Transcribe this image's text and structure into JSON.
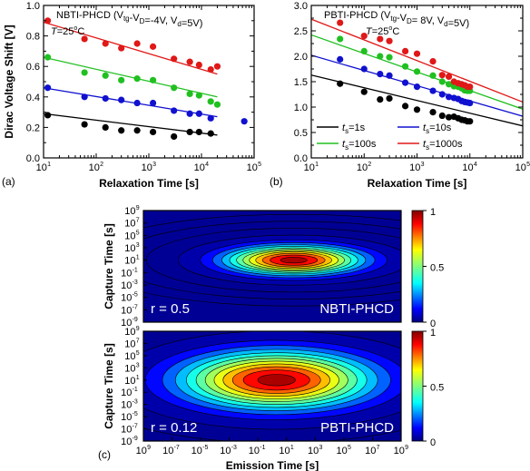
{
  "chart_data": [
    {
      "id": "a",
      "type": "scatter",
      "panel_label": "(a)",
      "title": "NBTI-PHCD",
      "condition": "(V",
      "condition_parts": {
        "vtg": "tg",
        "mid": "-V",
        "vd": "D",
        "eq": "=-4V, V",
        "d": "d",
        "end": "=5V)"
      },
      "temperature_prefix": "T",
      "temperature_value": "=25",
      "temperature_unit": "C",
      "temperature_sup": "o",
      "xlabel": "Relaxation Time [s]",
      "ylabel": "Dirac Voltage Shift [V]",
      "xscale": "log",
      "xlim": [
        10,
        100000
      ],
      "ylim": [
        0.0,
        1.0
      ],
      "xticks": [
        "1",
        "2",
        "3",
        "4",
        "5"
      ],
      "yticks": [
        "0.0",
        "0.2",
        "0.4",
        "0.6",
        "0.8",
        "1.0"
      ],
      "series": [
        {
          "color": "#000000",
          "points": [
            [
              12,
              0.28
            ],
            [
              60,
              0.22
            ],
            [
              150,
              0.2
            ],
            [
              300,
              0.18
            ],
            [
              600,
              0.18
            ],
            [
              1200,
              0.17
            ],
            [
              3000,
              0.14
            ],
            [
              6000,
              0.17
            ],
            [
              9000,
              0.17
            ],
            [
              15000,
              0.16
            ]
          ],
          "fit": [
            [
              10,
              0.29
            ],
            [
              20000,
              0.15
            ]
          ]
        },
        {
          "color": "#1010d0",
          "points": [
            [
              12,
              0.46
            ],
            [
              60,
              0.4
            ],
            [
              150,
              0.39
            ],
            [
              300,
              0.38
            ],
            [
              600,
              0.36
            ],
            [
              1200,
              0.36
            ],
            [
              3000,
              0.31
            ],
            [
              6000,
              0.29
            ],
            [
              9000,
              0.29
            ],
            [
              15000,
              0.26
            ],
            [
              65000,
              0.24
            ]
          ],
          "fit": [
            [
              10,
              0.46
            ],
            [
              20000,
              0.27
            ]
          ]
        },
        {
          "color": "#20c020",
          "points": [
            [
              12,
              0.66
            ],
            [
              60,
              0.56
            ],
            [
              150,
              0.54
            ],
            [
              300,
              0.51
            ],
            [
              600,
              0.52
            ],
            [
              1200,
              0.51
            ],
            [
              3000,
              0.46
            ],
            [
              6000,
              0.42
            ],
            [
              9000,
              0.41
            ],
            [
              15000,
              0.37
            ],
            [
              20000,
              0.35
            ]
          ],
          "fit": [
            [
              10,
              0.66
            ],
            [
              20000,
              0.4
            ]
          ]
        },
        {
          "color": "#e01818",
          "points": [
            [
              12,
              0.9
            ],
            [
              60,
              0.78
            ],
            [
              150,
              0.75
            ],
            [
              300,
              0.72
            ],
            [
              600,
              0.75
            ],
            [
              1200,
              0.73
            ],
            [
              3000,
              0.65
            ],
            [
              6000,
              0.63
            ],
            [
              9000,
              0.61
            ],
            [
              15000,
              0.58
            ],
            [
              20000,
              0.6
            ]
          ],
          "fit": [
            [
              10,
              0.89
            ],
            [
              20000,
              0.55
            ]
          ]
        }
      ]
    },
    {
      "id": "b",
      "type": "scatter",
      "panel_label": "(b)",
      "title": "PBTI-PHCD",
      "condition": "(V",
      "condition_parts": {
        "vtg": "tg",
        "mid": "-V",
        "vd": "D",
        "eq": "= 8V, V",
        "d": "d",
        "end": "=5V)"
      },
      "temperature_prefix": "T",
      "temperature_value": "=25",
      "temperature_unit": "C",
      "temperature_sup": "o",
      "xlabel": "Relaxation Time [s]",
      "ylabel": "",
      "xscale": "log",
      "xlim": [
        10,
        100000
      ],
      "ylim": [
        0.0,
        3.0
      ],
      "xticks": [
        "1",
        "2",
        "3",
        "4",
        "5"
      ],
      "yticks": [
        "0.0",
        "0.5",
        "1.0",
        "1.5",
        "2.0",
        "2.5",
        "3.0"
      ],
      "legend": [
        {
          "prefix": "t",
          "sub": "s",
          "label": "=1s",
          "color": "#000000"
        },
        {
          "prefix": "t",
          "sub": "s",
          "label": "=10s",
          "color": "#1010d0"
        },
        {
          "prefix": "t",
          "sub": "s",
          "label": "=100s",
          "color": "#20c020"
        },
        {
          "prefix": "t",
          "sub": "s",
          "label": "=1000s",
          "color": "#e01818"
        }
      ],
      "series": [
        {
          "color": "#000000",
          "points": [
            [
              35,
              1.46
            ],
            [
              100,
              1.3
            ],
            [
              200,
              1.15
            ],
            [
              300,
              1.17
            ],
            [
              600,
              1.02
            ],
            [
              1000,
              0.95
            ],
            [
              2000,
              0.9
            ],
            [
              3000,
              0.83
            ],
            [
              4000,
              0.8
            ],
            [
              5000,
              0.81
            ],
            [
              6000,
              0.78
            ],
            [
              7000,
              0.75
            ],
            [
              8000,
              0.74
            ],
            [
              9000,
              0.72
            ],
            [
              10000,
              0.72
            ]
          ],
          "fit": [
            [
              10,
              1.63
            ],
            [
              100000,
              0.63
            ]
          ]
        },
        {
          "color": "#1010d0",
          "points": [
            [
              35,
              1.94
            ],
            [
              100,
              1.75
            ],
            [
              200,
              1.65
            ],
            [
              300,
              1.62
            ],
            [
              600,
              1.48
            ],
            [
              1000,
              1.4
            ],
            [
              2000,
              1.32
            ],
            [
              3000,
              1.25
            ],
            [
              4000,
              1.2
            ],
            [
              5000,
              1.18
            ],
            [
              6000,
              1.16
            ],
            [
              7000,
              1.12
            ],
            [
              8000,
              1.1
            ],
            [
              9000,
              1.09
            ],
            [
              10000,
              1.08
            ]
          ],
          "fit": [
            [
              10,
              2.02
            ],
            [
              100000,
              0.82
            ]
          ]
        },
        {
          "color": "#20c020",
          "points": [
            [
              35,
              2.34
            ],
            [
              100,
              2.1
            ],
            [
              200,
              2.0
            ],
            [
              300,
              1.98
            ],
            [
              600,
              1.8
            ],
            [
              1000,
              1.7
            ],
            [
              2000,
              1.62
            ],
            [
              3000,
              1.5
            ],
            [
              4000,
              1.45
            ],
            [
              5000,
              1.41
            ],
            [
              6000,
              1.4
            ],
            [
              7000,
              1.37
            ],
            [
              8000,
              1.33
            ],
            [
              9000,
              1.32
            ],
            [
              10000,
              1.32
            ]
          ],
          "fit": [
            [
              10,
              2.42
            ],
            [
              100000,
              0.96
            ]
          ]
        },
        {
          "color": "#e01818",
          "points": [
            [
              35,
              2.66
            ],
            [
              100,
              2.4
            ],
            [
              200,
              2.34
            ],
            [
              300,
              2.3
            ],
            [
              600,
              2.1
            ],
            [
              1000,
              2.05
            ],
            [
              2000,
              1.9
            ],
            [
              3000,
              1.63
            ],
            [
              4000,
              1.6
            ],
            [
              5000,
              1.5
            ],
            [
              6000,
              1.47
            ],
            [
              7000,
              1.45
            ],
            [
              8000,
              1.43
            ],
            [
              9000,
              1.4
            ],
            [
              10000,
              1.4
            ]
          ],
          "fit": [
            [
              10,
              2.73
            ],
            [
              100000,
              1.1
            ]
          ]
        }
      ]
    },
    {
      "id": "c",
      "type": "heatmap",
      "panel_label": "(c)",
      "xlabel": "Emission Time [s]",
      "ylabel": "Capture Time [s]",
      "xscale": "log",
      "yscale": "log",
      "xticks": [
        "9",
        "-7",
        "-5",
        "-3",
        "-1",
        "1",
        "3",
        "5",
        "7",
        "9"
      ],
      "yticks": [
        "9",
        "7",
        "5",
        "3",
        "1",
        "-1",
        "-3",
        "-5",
        "-7",
        "-9"
      ],
      "colorbar_ticks": [
        "1",
        "0.5",
        "0"
      ],
      "maps": [
        {
          "label": "NBTI-PHCD",
          "r_text": "r = 0.5",
          "center_x_log": 1.5,
          "center_y_log": 1.0,
          "sigma_x": 3.2,
          "sigma_y": 1.6,
          "rho": 0.25
        },
        {
          "label": "PBTI-PHCD",
          "r_text": "r = 0.12",
          "center_x_log": 0.3,
          "center_y_log": 1.0,
          "sigma_x": 4.5,
          "sigma_y": 3.2,
          "rho": 0.05
        }
      ]
    }
  ]
}
